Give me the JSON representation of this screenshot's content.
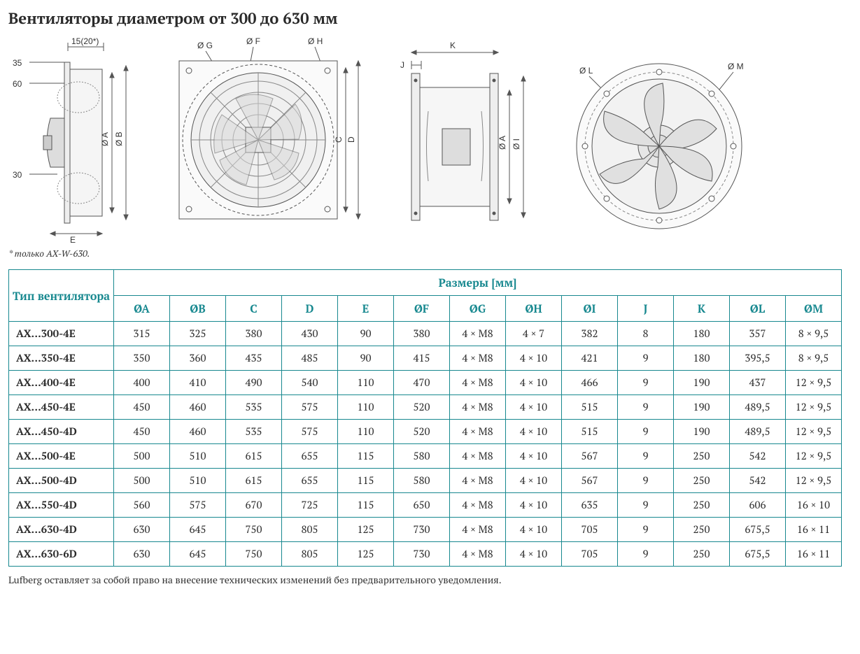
{
  "title": "Вентиляторы диаметром от 300 до 630 мм",
  "footnote": "* только AX-W-630.",
  "disclaimer": "Lufberg оставляет за собой право на внесение технических изменений без предварительного уведомления.",
  "diagram_labels": {
    "d1_top": "15(20*)",
    "d1_35": "35",
    "d1_60": "60",
    "d1_30": "30",
    "d1_E": "E",
    "d1_A": "Ø A",
    "d1_B": "Ø B",
    "d2_F": "Ø F",
    "d2_G": "Ø G",
    "d2_H": "Ø H",
    "d2_C": "C",
    "d2_D": "D",
    "d3_J": "J",
    "d3_K": "K",
    "d3_A": "Ø A",
    "d3_I": "Ø I",
    "d4_L": "Ø L",
    "d4_M": "Ø M"
  },
  "table": {
    "corner_header": "Тип вентилятора",
    "super_header": "Размеры [мм]",
    "columns": [
      "ØA",
      "ØB",
      "C",
      "D",
      "E",
      "ØF",
      "ØG",
      "ØH",
      "ØI",
      "J",
      "K",
      "ØL",
      "ØM"
    ],
    "rows": [
      {
        "type": "AX...300-4E",
        "cells": [
          "315",
          "325",
          "380",
          "430",
          "90",
          "380",
          "4 × M8",
          "4 × 7",
          "382",
          "8",
          "180",
          "357",
          "8 × 9,5"
        ]
      },
      {
        "type": "AX...350-4E",
        "cells": [
          "350",
          "360",
          "435",
          "485",
          "90",
          "415",
          "4 × M8",
          "4 × 10",
          "421",
          "9",
          "180",
          "395,5",
          "8 × 9,5"
        ]
      },
      {
        "type": "AX...400-4E",
        "cells": [
          "400",
          "410",
          "490",
          "540",
          "110",
          "470",
          "4 × M8",
          "4 × 10",
          "466",
          "9",
          "190",
          "437",
          "12 × 9,5"
        ]
      },
      {
        "type": "AX...450-4E",
        "cells": [
          "450",
          "460",
          "535",
          "575",
          "110",
          "520",
          "4 × M8",
          "4 × 10",
          "515",
          "9",
          "190",
          "489,5",
          "12 × 9,5"
        ]
      },
      {
        "type": "AX...450-4D",
        "cells": [
          "450",
          "460",
          "535",
          "575",
          "110",
          "520",
          "4 × M8",
          "4 × 10",
          "515",
          "9",
          "190",
          "489,5",
          "12 × 9,5"
        ]
      },
      {
        "type": "AX...500-4E",
        "cells": [
          "500",
          "510",
          "615",
          "655",
          "115",
          "580",
          "4 × M8",
          "4 × 10",
          "567",
          "9",
          "250",
          "542",
          "12 × 9,5"
        ]
      },
      {
        "type": "AX...500-4D",
        "cells": [
          "500",
          "510",
          "615",
          "655",
          "115",
          "580",
          "4 × M8",
          "4 × 10",
          "567",
          "9",
          "250",
          "542",
          "12 × 9,5"
        ]
      },
      {
        "type": "AX...550-4D",
        "cells": [
          "560",
          "575",
          "670",
          "725",
          "115",
          "650",
          "4 × M8",
          "4 × 10",
          "635",
          "9",
          "250",
          "606",
          "16 × 10"
        ]
      },
      {
        "type": "AX...630-4D",
        "cells": [
          "630",
          "645",
          "750",
          "805",
          "125",
          "730",
          "4 × M8",
          "4 × 10",
          "705",
          "9",
          "250",
          "675,5",
          "16 × 11"
        ]
      },
      {
        "type": "AX...630-6D",
        "cells": [
          "630",
          "645",
          "750",
          "805",
          "125",
          "730",
          "4 × M8",
          "4 × 10",
          "705",
          "9",
          "250",
          "675,5",
          "16 × 11"
        ]
      }
    ]
  },
  "style": {
    "border_color": "#17888f",
    "header_color": "#17888f",
    "text_color": "#2a2a2a",
    "diagram_stroke": "#6c6c6c",
    "diagram_stroke_dark": "#4a4a4a",
    "background": "#ffffff"
  }
}
